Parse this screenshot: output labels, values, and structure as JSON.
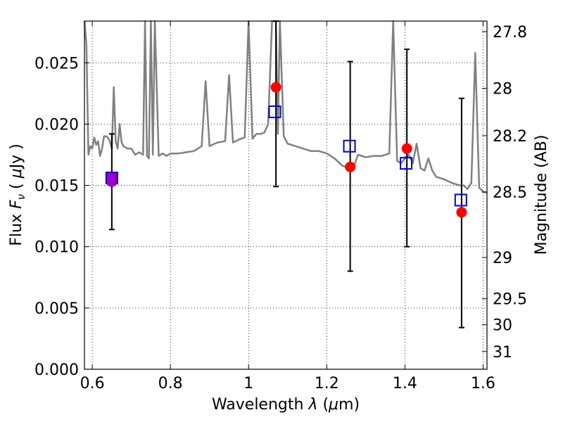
{
  "chart_data": {
    "type": "scatter",
    "title": "",
    "xlabel_parts": {
      "a": "Wavelength  ",
      "b": "λ",
      "c": " (",
      "d": "μ",
      "e": "m)"
    },
    "ylabel_parts": {
      "a": "Flux  ",
      "b": "F",
      "c": "ν",
      "d": "  ( ",
      "e": "μ",
      "f": "Jy )"
    },
    "y2label": "Magnitude (AB)",
    "xlim": [
      0.58,
      1.61
    ],
    "ylim": [
      0.0,
      0.0284
    ],
    "grid": true,
    "x_ticks": [
      {
        "value": 0.6,
        "label": "0.6"
      },
      {
        "value": 0.8,
        "label": "0.8"
      },
      {
        "value": 1.0,
        "label": "1"
      },
      {
        "value": 1.2,
        "label": "1.2"
      },
      {
        "value": 1.4,
        "label": "1.4"
      },
      {
        "value": 1.6,
        "label": "1.6"
      }
    ],
    "y_ticks": [
      {
        "value": 0.0,
        "label": "0.000"
      },
      {
        "value": 0.005,
        "label": "0.005"
      },
      {
        "value": 0.01,
        "label": "0.010"
      },
      {
        "value": 0.015,
        "label": "0.015"
      },
      {
        "value": 0.02,
        "label": "0.020"
      },
      {
        "value": 0.025,
        "label": "0.025"
      }
    ],
    "y2_ticks": [
      {
        "mag": 27.8,
        "label": "27.8"
      },
      {
        "mag": 28.0,
        "label": "28"
      },
      {
        "mag": 28.2,
        "label": "28.2"
      },
      {
        "mag": 28.5,
        "label": "28.5"
      },
      {
        "mag": 29.0,
        "label": "29"
      },
      {
        "mag": 29.5,
        "label": "29.5"
      },
      {
        "mag": 30.0,
        "label": "30"
      },
      {
        "mag": 31.0,
        "label": "31"
      }
    ],
    "colors": {
      "spectrum": "#808080",
      "observed": "#ff0000",
      "model": "#0000cc",
      "errorbar": "#000000",
      "overlap": "#9900cc"
    },
    "series": [
      {
        "kind": "line",
        "x": [
          0.58,
          0.585,
          0.59,
          0.595,
          0.6,
          0.605,
          0.61,
          0.615,
          0.62,
          0.625,
          0.63,
          0.635,
          0.64,
          0.645,
          0.65,
          0.655,
          0.66,
          0.665,
          0.67,
          0.675,
          0.68,
          0.69,
          0.7,
          0.71,
          0.72,
          0.73,
          0.735,
          0.74,
          0.745,
          0.75,
          0.755,
          0.76,
          0.77,
          0.78,
          0.79,
          0.8,
          0.82,
          0.84,
          0.86,
          0.88,
          0.89,
          0.9,
          0.92,
          0.94,
          0.95,
          0.96,
          0.98,
          0.99,
          1.0,
          1.01,
          1.02,
          1.03,
          1.04,
          1.05,
          1.06,
          1.07,
          1.075,
          1.08,
          1.09,
          1.1,
          1.12,
          1.14,
          1.16,
          1.18,
          1.2,
          1.22,
          1.24,
          1.25,
          1.26,
          1.27,
          1.28,
          1.3,
          1.32,
          1.34,
          1.36,
          1.37,
          1.38,
          1.39,
          1.4,
          1.41,
          1.42,
          1.43,
          1.44,
          1.45,
          1.46,
          1.47,
          1.48,
          1.5,
          1.52,
          1.54,
          1.55,
          1.56,
          1.57,
          1.58,
          1.59,
          1.6,
          1.61
        ],
        "y": [
          0.0284,
          0.0265,
          0.0175,
          0.0182,
          0.018,
          0.0189,
          0.0183,
          0.0186,
          0.0174,
          0.018,
          0.019,
          0.019,
          0.0189,
          0.0186,
          0.018,
          0.023,
          0.0186,
          0.018,
          0.02,
          0.0185,
          0.0182,
          0.018,
          0.018,
          0.0175,
          0.0177,
          0.0175,
          0.0284,
          0.0174,
          0.0172,
          0.0284,
          0.0175,
          0.0284,
          0.0174,
          0.0176,
          0.0174,
          0.0176,
          0.0176,
          0.0177,
          0.0178,
          0.0182,
          0.0235,
          0.0182,
          0.0185,
          0.0186,
          0.024,
          0.0185,
          0.0188,
          0.0189,
          0.0284,
          0.0188,
          0.0192,
          0.0192,
          0.0193,
          0.02,
          0.0284,
          0.0284,
          0.0192,
          0.0284,
          0.019,
          0.0184,
          0.0182,
          0.018,
          0.0178,
          0.0178,
          0.0176,
          0.0172,
          0.0166,
          0.0165,
          0.0168,
          0.0166,
          0.0175,
          0.0173,
          0.0174,
          0.0174,
          0.0176,
          0.0284,
          0.017,
          0.0168,
          0.0172,
          0.0175,
          0.0168,
          0.0184,
          0.0164,
          0.0162,
          0.0172,
          0.0162,
          0.0157,
          0.0155,
          0.0152,
          0.015,
          0.015,
          0.0147,
          0.0152,
          0.0258,
          0.0148,
          0.0145,
          0.0144
        ]
      }
    ],
    "observed_points": [
      {
        "x": 0.65,
        "y": 0.0153
      },
      {
        "x": 1.07,
        "y": 0.023
      },
      {
        "x": 1.26,
        "y": 0.0165
      },
      {
        "x": 1.405,
        "y": 0.018
      },
      {
        "x": 1.545,
        "y": 0.0128
      }
    ],
    "model_points": [
      {
        "x": 0.65,
        "y": 0.0156
      },
      {
        "x": 1.067,
        "y": 0.021
      },
      {
        "x": 1.258,
        "y": 0.0182
      },
      {
        "x": 1.403,
        "y": 0.0168
      },
      {
        "x": 1.543,
        "y": 0.0138
      }
    ],
    "error_bars": [
      {
        "x": 0.65,
        "low": 0.0114,
        "high": 0.0192
      },
      {
        "x": 1.07,
        "low": 0.0149,
        "high": 0.0284
      },
      {
        "x": 1.26,
        "low": 0.008,
        "high": 0.0251
      },
      {
        "x": 1.405,
        "low": 0.01,
        "high": 0.0261
      },
      {
        "x": 1.545,
        "low": 0.0034,
        "high": 0.0221
      }
    ]
  }
}
